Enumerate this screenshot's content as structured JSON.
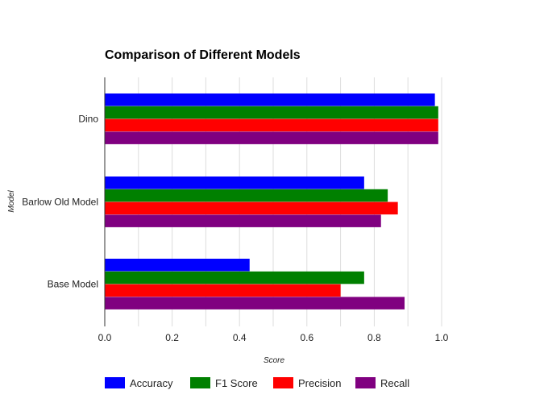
{
  "chart_data": {
    "type": "bar",
    "orientation": "horizontal",
    "title": "Comparison of Different Models",
    "xlabel": "Score",
    "ylabel": "Model",
    "xlim": [
      0,
      1.0
    ],
    "x_ticks": [
      "0.0",
      "0.2",
      "0.4",
      "0.6",
      "0.8",
      "1.0"
    ],
    "categories": [
      "Dino",
      "Barlow Old Model",
      "Base Model"
    ],
    "series": [
      {
        "name": "Accuracy",
        "color": "#0000ff",
        "values": [
          0.98,
          0.77,
          0.43
        ]
      },
      {
        "name": "F1 Score",
        "color": "#008000",
        "values": [
          0.99,
          0.84,
          0.77
        ]
      },
      {
        "name": "Precision",
        "color": "#ff0000",
        "values": [
          0.99,
          0.87,
          0.7
        ]
      },
      {
        "name": "Recall",
        "color": "#800080",
        "values": [
          0.99,
          0.82,
          0.89
        ]
      }
    ],
    "grid": true,
    "legend_position": "bottom-left"
  }
}
